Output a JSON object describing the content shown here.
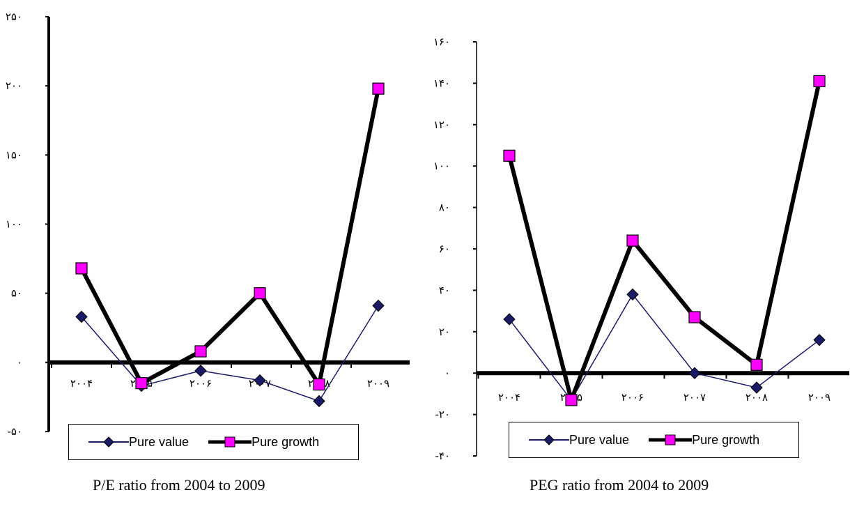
{
  "colors": {
    "pure_value": "#1a1a66",
    "pure_growth": "#ff00ff",
    "axis": "#000000"
  },
  "legend": {
    "pure_value": "Pure value",
    "pure_growth": "Pure growth"
  },
  "chart_data": [
    {
      "type": "line",
      "title": "P/E ratio from 2004 to 2009",
      "categories": [
        "۲۰۰۴",
        "۲۰۰۵",
        "۲۰۰۶",
        "۲۰۰۷",
        "۲۰۰۸",
        "۲۰۰۹"
      ],
      "ylim": [
        -50,
        250
      ],
      "yticks": [
        -50,
        0,
        50,
        100,
        150,
        200,
        250
      ],
      "ytick_labels": [
        "-۵۰",
        "۰",
        "۵۰",
        "۱۰۰",
        "۱۵۰",
        "۲۰۰",
        "۲۵۰"
      ],
      "series": [
        {
          "name": "Pure value",
          "values": [
            33,
            -17,
            -6,
            -13,
            -28,
            41
          ]
        },
        {
          "name": "Pure growth",
          "values": [
            68,
            -15,
            8,
            50,
            -16,
            198
          ]
        }
      ]
    },
    {
      "type": "line",
      "title": "PEG ratio from 2004 to 2009",
      "categories": [
        "۲۰۰۴",
        "۲۰۰۵",
        "۲۰۰۶",
        "۲۰۰۷",
        "۲۰۰۸",
        "۲۰۰۹"
      ],
      "ylim": [
        -40,
        160
      ],
      "yticks": [
        -40,
        -20,
        0,
        20,
        40,
        60,
        80,
        100,
        120,
        140,
        160
      ],
      "ytick_labels": [
        "-۴۰",
        "-۲۰",
        "۰",
        "۲۰",
        "۴۰",
        "۶۰",
        "۸۰",
        "۱۰۰",
        "۱۲۰",
        "۱۴۰",
        "۱۶۰"
      ],
      "series": [
        {
          "name": "Pure value",
          "values": [
            26,
            -13,
            38,
            0,
            -7,
            16
          ]
        },
        {
          "name": "Pure growth",
          "values": [
            105,
            -13,
            64,
            27,
            4,
            141
          ]
        }
      ]
    }
  ]
}
